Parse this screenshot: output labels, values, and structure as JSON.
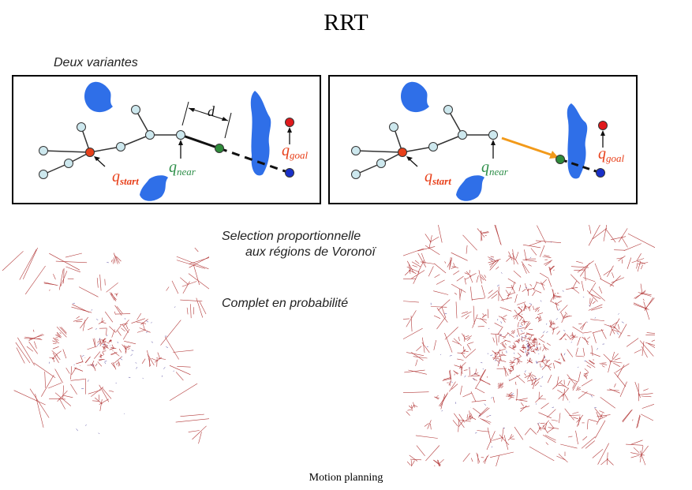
{
  "title": "RRT",
  "subtitle": "Deux variantes",
  "panels": [
    {
      "label_d": "d",
      "q_goal": "q",
      "q_goal_sub": "goal",
      "q_near": "q",
      "q_near_sub": "near",
      "q_start": "q",
      "q_start_sub": "start"
    },
    {
      "q_goal": "q",
      "q_goal_sub": "goal",
      "q_near": "q",
      "q_near_sub": "near",
      "q_start": "q",
      "q_start_sub": "start"
    }
  ],
  "bullets": {
    "line1": "Selection proportionnelle",
    "line2": "aux régions  de Voronoï",
    "line3": "Complet en probabilité"
  },
  "footer": "Motion planning",
  "colors": {
    "obstacle": "#2f6fe8",
    "node": "#cde8ee",
    "start": "#e8401a",
    "goal": "#e0191c",
    "target": "#1930c8",
    "new_node": "#2e8b3a",
    "arrow": "#f29a1a",
    "q_start": "#e8401a",
    "q_near": "#2f8f4a",
    "q_goal": "#e8401a",
    "voronoi": "#b33a3a"
  }
}
